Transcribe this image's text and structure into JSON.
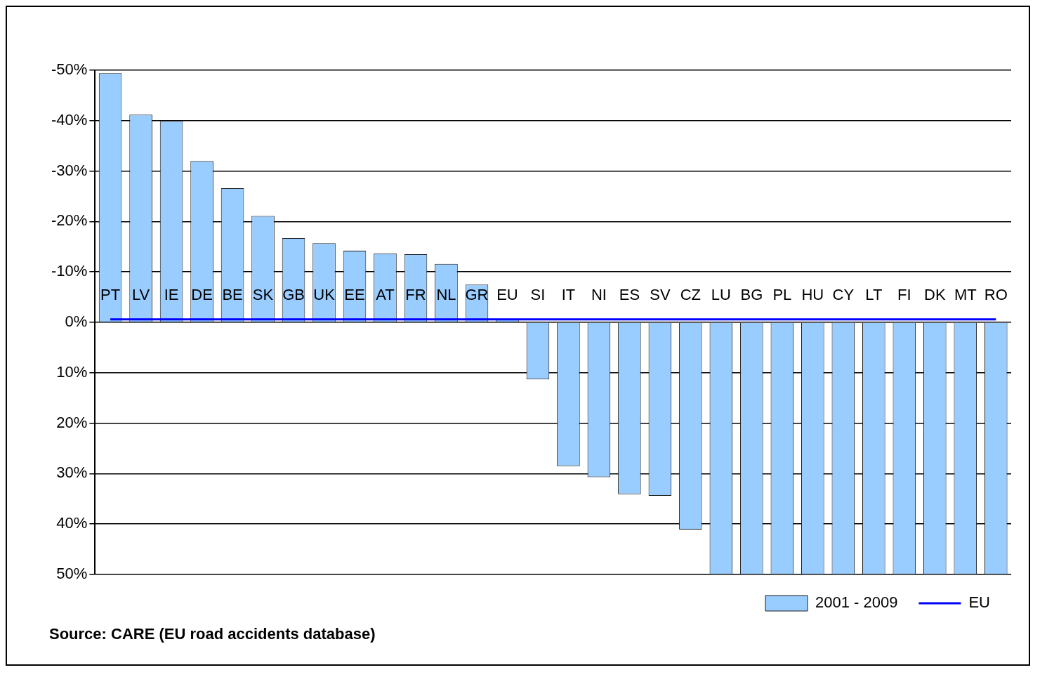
{
  "chart_data": {
    "type": "bar",
    "categories": [
      "PT",
      "LV",
      "IE",
      "DE",
      "BE",
      "SK",
      "GB",
      "UK",
      "EE",
      "AT",
      "FR",
      "NL",
      "GR",
      "EU",
      "SI",
      "IT",
      "NI",
      "ES",
      "SV",
      "CZ",
      "LU",
      "BG",
      "PL",
      "HU",
      "CY",
      "LT",
      "FI",
      "DK",
      "MT",
      "RO"
    ],
    "series": [
      {
        "name": "2001 - 2009",
        "color": "#99ccff",
        "values": [
          -49.4,
          -41.2,
          -39.9,
          -32.0,
          -26.6,
          -21.1,
          -16.7,
          -15.7,
          -14.2,
          -13.7,
          -13.5,
          -11.6,
          -7.5,
          -0.6,
          11.3,
          28.5,
          30.7,
          34.1,
          34.4,
          41.1,
          50,
          50,
          50,
          50,
          50,
          50,
          50,
          50,
          50,
          50
        ]
      },
      {
        "name": "EU",
        "type": "line",
        "color": "#0000ff",
        "values": [
          -0.6,
          -0.6,
          -0.6,
          -0.6,
          -0.6,
          -0.6,
          -0.6,
          -0.6,
          -0.6,
          -0.6,
          -0.6,
          -0.6,
          -0.6,
          -0.6,
          -0.6,
          -0.6,
          -0.6,
          -0.6,
          -0.6,
          -0.6,
          -0.6,
          -0.6,
          -0.6,
          -0.6,
          -0.6,
          -0.6,
          -0.6,
          -0.6,
          -0.6,
          -0.6
        ]
      }
    ],
    "ylim": [
      50,
      -50
    ],
    "yticks": [
      {
        "value": -50,
        "label": "-50%"
      },
      {
        "value": -40,
        "label": "-40%"
      },
      {
        "value": -30,
        "label": "-30%"
      },
      {
        "value": -20,
        "label": "-20%"
      },
      {
        "value": -10,
        "label": "-10%"
      },
      {
        "value": 0,
        "label": "0%"
      },
      {
        "value": 10,
        "label": "10%"
      },
      {
        "value": 20,
        "label": "20%"
      },
      {
        "value": 30,
        "label": "30%"
      },
      {
        "value": 40,
        "label": "40%"
      },
      {
        "value": 50,
        "label": "50%"
      }
    ],
    "grid": "y",
    "legend": "bottom",
    "annotations": [
      "Source: CARE (EU road accidents database)"
    ]
  }
}
